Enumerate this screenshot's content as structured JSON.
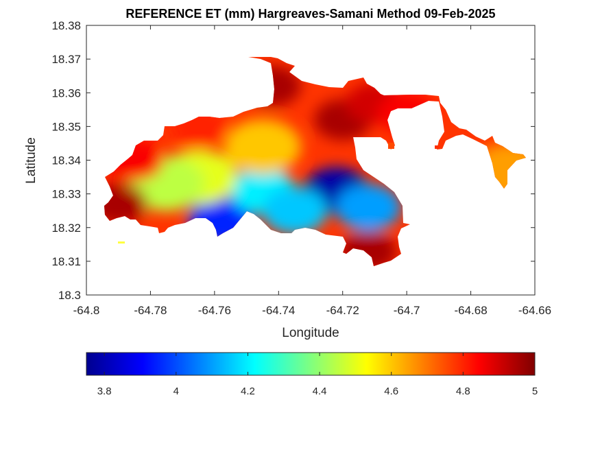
{
  "chart_data": {
    "type": "heatmap",
    "title": "REFERENCE ET (mm) Hargreaves-Samani Method  09-Feb-2025",
    "xlabel": "Longitude",
    "ylabel": "Latitude",
    "xlim": [
      -64.8,
      -64.66
    ],
    "ylim": [
      18.3,
      18.38
    ],
    "xticks": [
      "-64.8",
      "-64.78",
      "-64.76",
      "-64.74",
      "-64.72",
      "-64.7",
      "-64.68",
      "-64.66"
    ],
    "yticks": [
      "18.3",
      "18.31",
      "18.32",
      "18.33",
      "18.34",
      "18.35",
      "18.36",
      "18.37",
      "18.38"
    ],
    "colorbar": {
      "colormap": "jet",
      "range": [
        3.75,
        5.0
      ],
      "ticks": [
        "3.8",
        "4",
        "4.2",
        "4.4",
        "4.6",
        "4.8",
        "5"
      ]
    },
    "hotspots": [
      {
        "lon": -64.722,
        "lat": 18.331,
        "value": 3.8
      },
      {
        "lon": -64.758,
        "lat": 18.322,
        "value": 3.95
      },
      {
        "lon": -64.745,
        "lat": 18.331,
        "value": 4.2
      },
      {
        "lon": -64.735,
        "lat": 18.325,
        "value": 4.15
      },
      {
        "lon": -64.712,
        "lat": 18.326,
        "value": 4.1
      },
      {
        "lon": -64.765,
        "lat": 18.335,
        "value": 4.5
      },
      {
        "lon": -64.775,
        "lat": 18.333,
        "value": 4.45
      },
      {
        "lon": -64.745,
        "lat": 18.344,
        "value": 4.6
      },
      {
        "lon": -64.79,
        "lat": 18.327,
        "value": 4.95
      },
      {
        "lon": -64.785,
        "lat": 18.34,
        "value": 4.85
      },
      {
        "lon": -64.742,
        "lat": 18.362,
        "value": 4.95
      },
      {
        "lon": -64.72,
        "lat": 18.352,
        "value": 4.95
      },
      {
        "lon": -64.71,
        "lat": 18.357,
        "value": 4.9
      },
      {
        "lon": -64.712,
        "lat": 18.313,
        "value": 4.95
      },
      {
        "lon": -64.7,
        "lat": 18.354,
        "value": 4.85
      },
      {
        "lon": -64.668,
        "lat": 18.337,
        "value": 4.65
      },
      {
        "lon": -64.765,
        "lat": 18.35,
        "value": 4.8
      }
    ]
  },
  "colors": {
    "axis": "#262626",
    "background": "#ffffff"
  }
}
